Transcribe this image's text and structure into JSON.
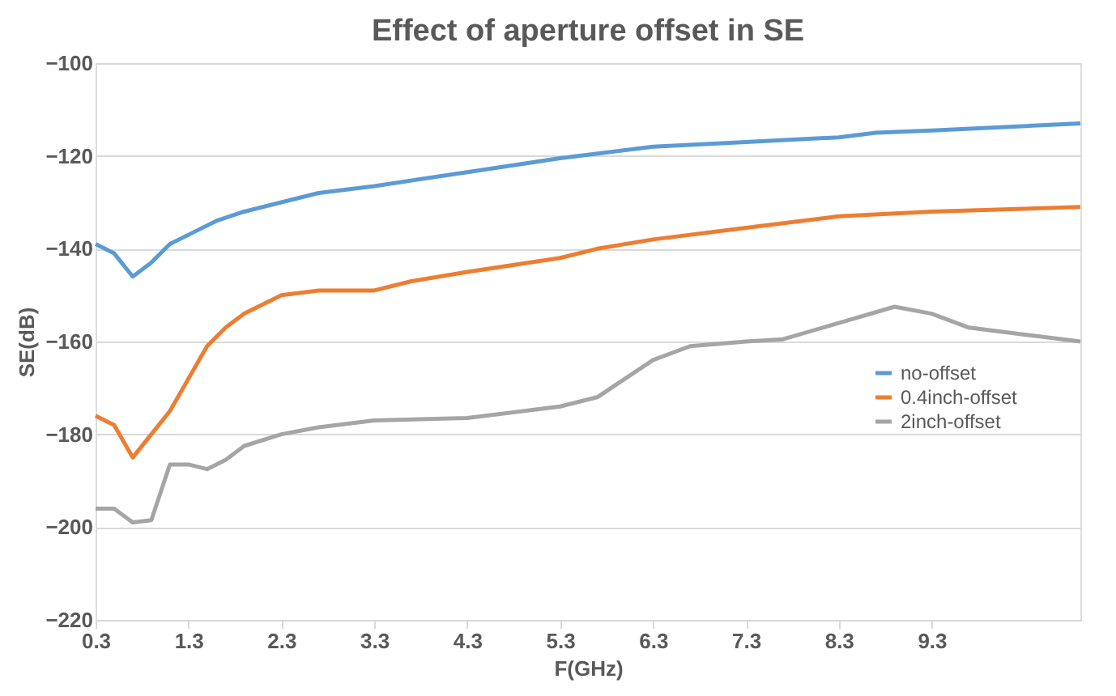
{
  "chart_data": {
    "type": "line",
    "title": "Effect of aperture offset in SE",
    "xlabel": "F(GHz)",
    "ylabel": "SE(dB)",
    "xlim": [
      0.3,
      10.9
    ],
    "xticks": [
      0.3,
      1.3,
      2.3,
      3.3,
      4.3,
      5.3,
      6.3,
      7.3,
      8.3,
      9.3
    ],
    "ylim": [
      -220,
      -100
    ],
    "yticks": [
      -220,
      -200,
      -180,
      -160,
      -140,
      -120,
      -100
    ],
    "grid": "y",
    "legend": "right",
    "marker": "none",
    "line_style": "solid",
    "series": [
      {
        "name": "no-offset",
        "color": "#5b9bd5",
        "x": [
          0.3,
          0.5,
          0.7,
          0.9,
          1.1,
          1.3,
          1.6,
          1.9,
          2.3,
          2.7,
          3.3,
          4.3,
          5.3,
          6.3,
          7.3,
          8.3,
          8.7,
          9.3,
          10.9
        ],
        "values": [
          -139,
          -141,
          -146,
          -143,
          -139,
          -137,
          -134,
          -132,
          -130,
          -128,
          -126.5,
          -123.5,
          -120.5,
          -118,
          -117,
          -116,
          -115,
          -114.5,
          -113
        ]
      },
      {
        "name": "0.4inch-offset",
        "color": "#ed7d31",
        "x": [
          0.3,
          0.5,
          0.7,
          0.9,
          1.1,
          1.3,
          1.5,
          1.7,
          1.9,
          2.3,
          2.7,
          3.3,
          3.7,
          4.3,
          5.3,
          5.7,
          6.3,
          7.3,
          8.3,
          9.3,
          10.9
        ],
        "values": [
          -176,
          -178,
          -185,
          -180,
          -175,
          -168,
          -161,
          -157,
          -154,
          -150,
          -149,
          -149,
          -147,
          -145,
          -142,
          -140,
          -138,
          -135.5,
          -133,
          -132,
          -131
        ]
      },
      {
        "name": "2inch-offset",
        "color": "#a5a5a5",
        "x": [
          0.3,
          0.5,
          0.7,
          0.9,
          1.1,
          1.3,
          1.5,
          1.7,
          1.9,
          2.3,
          2.7,
          3.3,
          4.3,
          5.3,
          5.7,
          6.3,
          6.7,
          7.3,
          7.7,
          8.3,
          8.9,
          9.3,
          9.7,
          10.3,
          10.9
        ],
        "values": [
          -196,
          -196,
          -199,
          -198.5,
          -186.5,
          -186.5,
          -187.5,
          -185.5,
          -182.5,
          -180,
          -178.5,
          -177,
          -176.5,
          -174,
          -172,
          -164,
          -161,
          -160,
          -159.5,
          -156,
          -152.5,
          -154,
          -157,
          -158.5,
          -160
        ]
      }
    ]
  }
}
